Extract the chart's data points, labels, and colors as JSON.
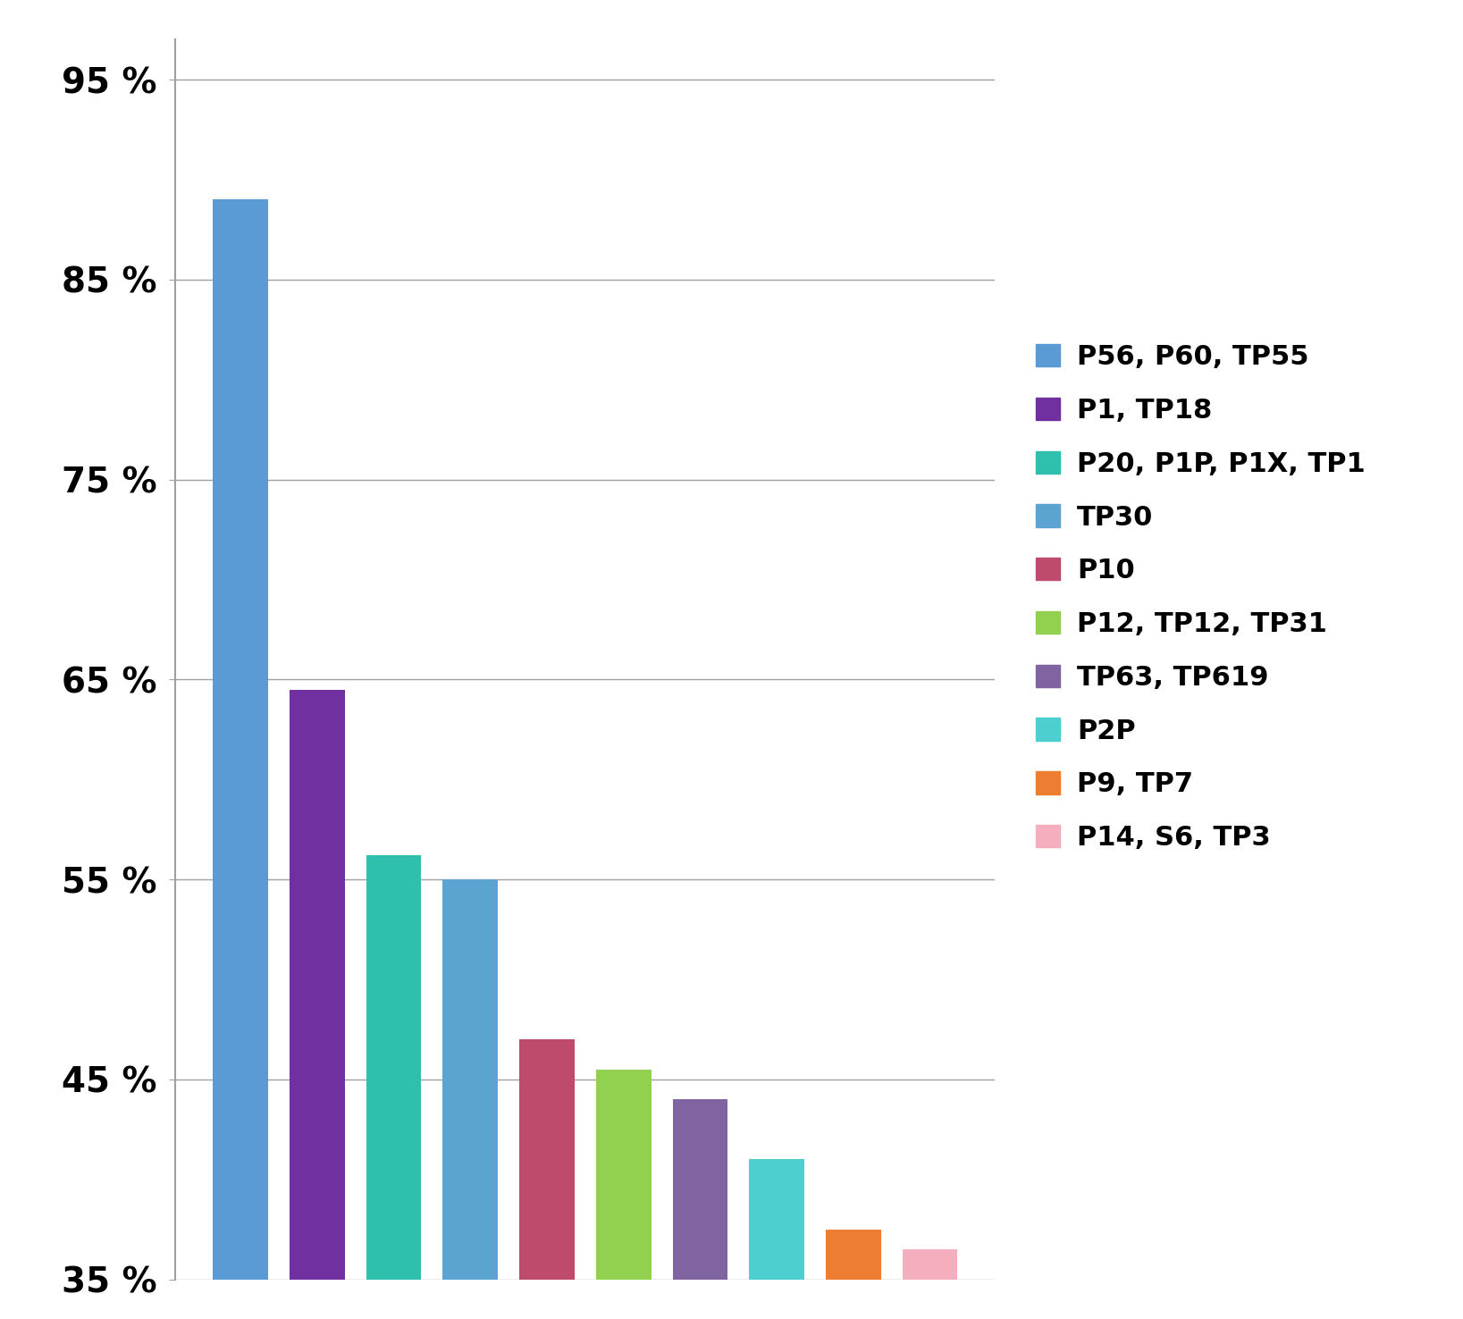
{
  "categories": [
    "P56, P60, TP55",
    "P1, TP18",
    "P20, P1P, P1X, TP1",
    "TP30",
    "P10",
    "P12, TP12, TP31",
    "TP63, TP619",
    "P2P",
    "P9, TP7",
    "P14, S6, TP3"
  ],
  "values": [
    89.0,
    64.5,
    56.2,
    55.0,
    47.0,
    45.5,
    44.0,
    41.0,
    37.5,
    36.5
  ],
  "colors": [
    "#5B9BD5",
    "#7030A0",
    "#2FBFAD",
    "#5BA3D0",
    "#BE4B6B",
    "#92D050",
    "#8064A2",
    "#4ECFCF",
    "#ED7D31",
    "#F4AEBE"
  ],
  "ylim_min": 35,
  "ylim_max": 97,
  "yticks": [
    35,
    45,
    55,
    65,
    75,
    85,
    95
  ],
  "ytick_labels": [
    "35 %",
    "45 %",
    "55 %",
    "65 %",
    "75 %",
    "85 %",
    "95 %"
  ],
  "background_color": "#FFFFFF",
  "grid_color": "#A0A0A0",
  "legend_fontsize": 22,
  "tick_fontsize": 28,
  "bar_width": 0.72,
  "spine_color": "#A0A0A0"
}
